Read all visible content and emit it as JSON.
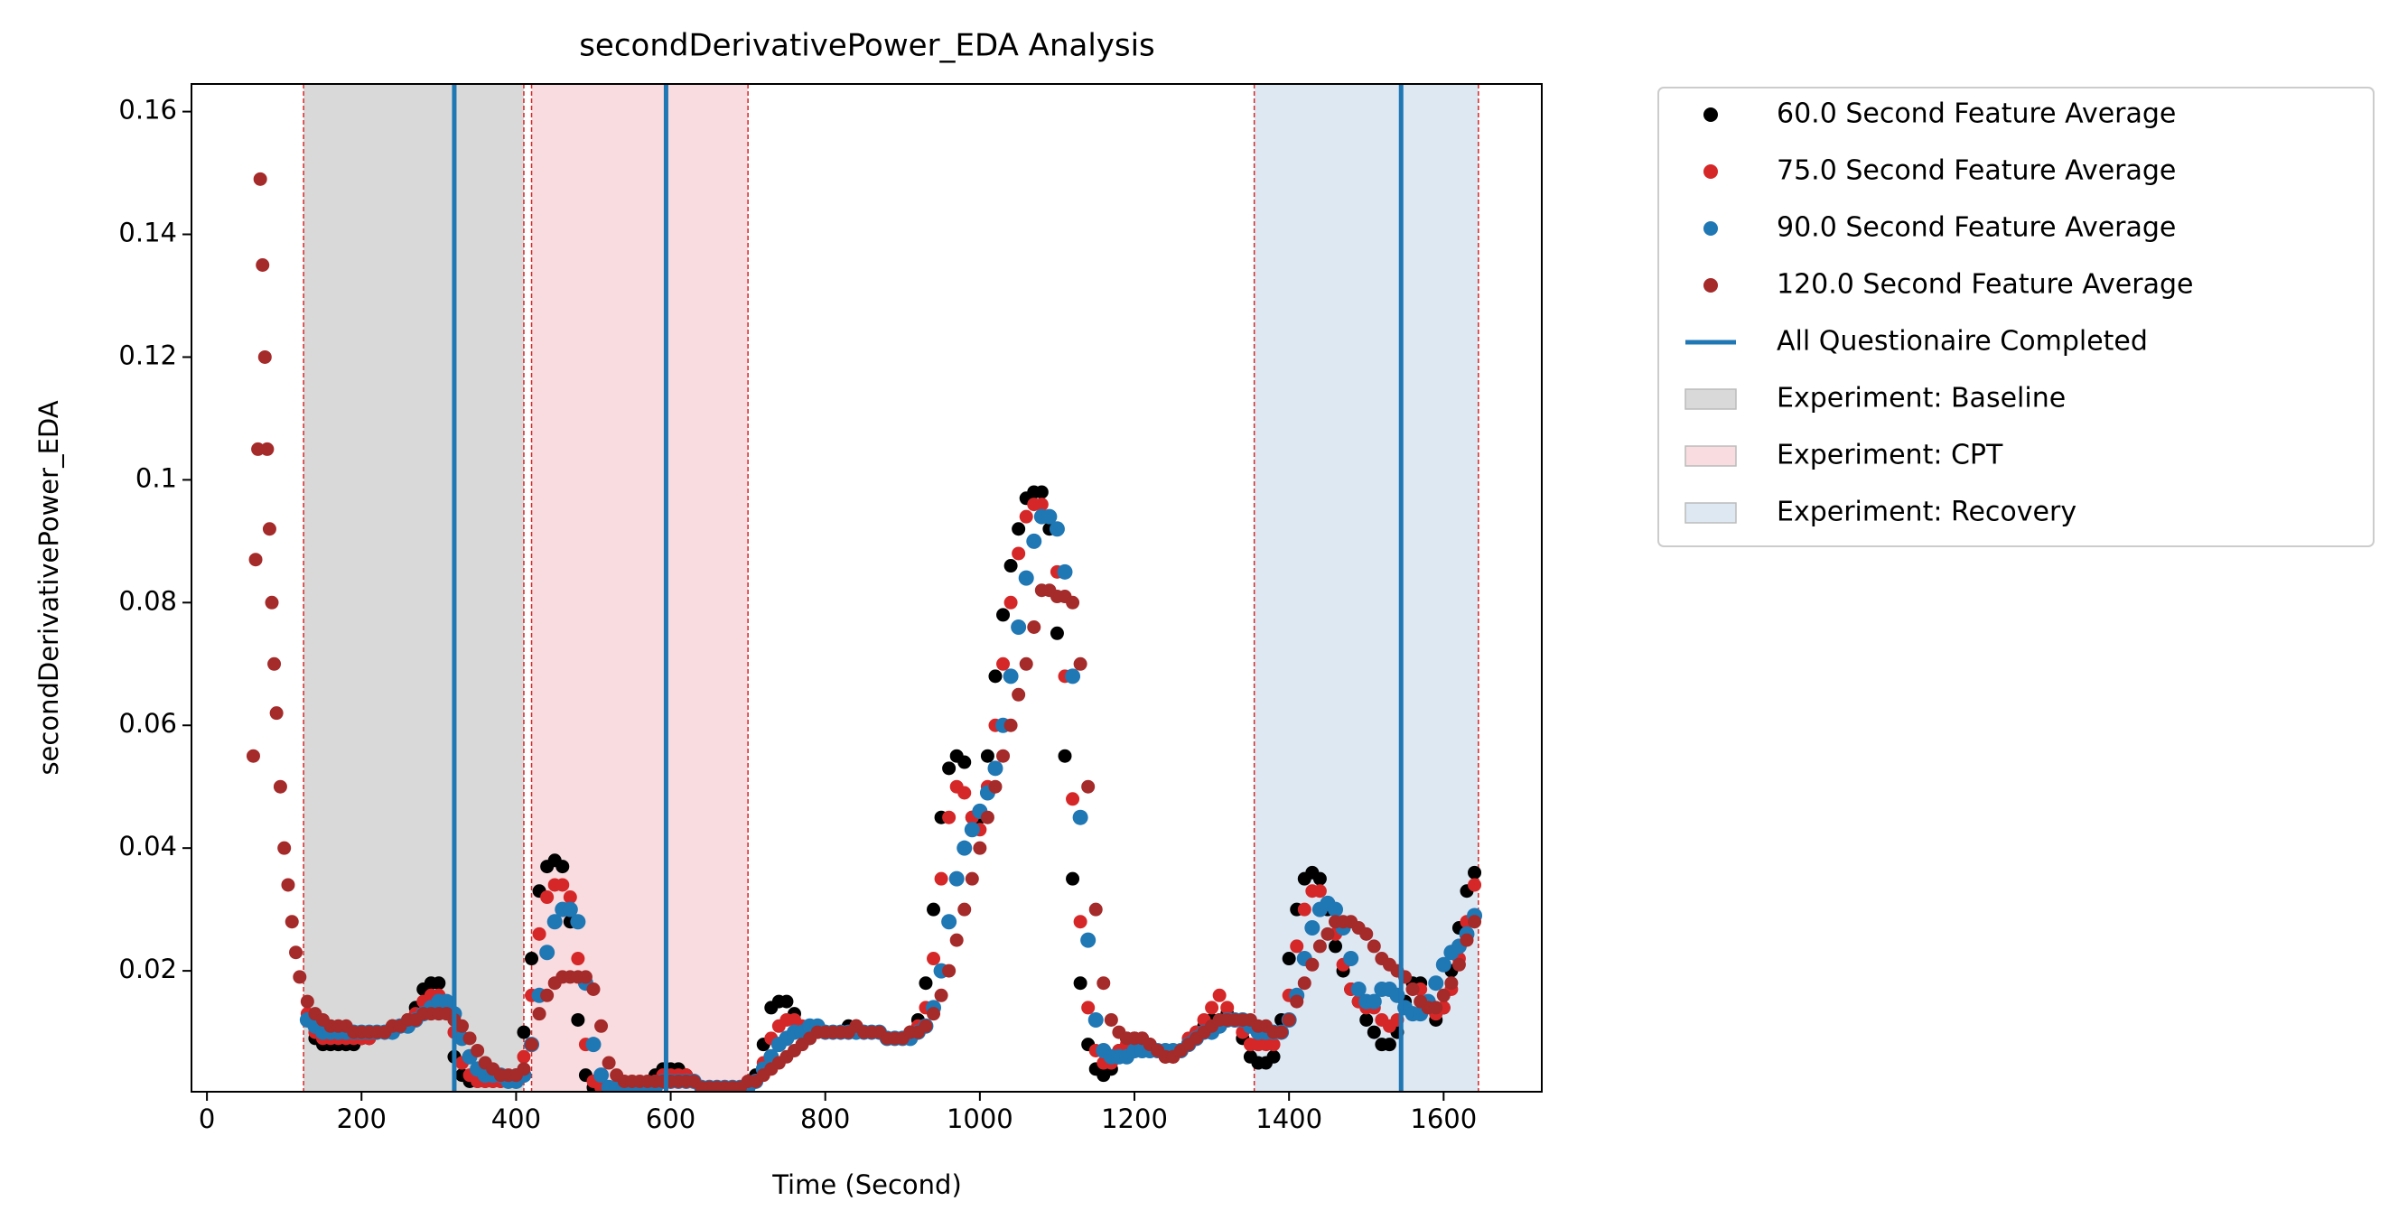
{
  "chart_data": {
    "type": "scatter",
    "title": "secondDerivativePower_EDA Analysis",
    "xlabel": "Time (Second)",
    "ylabel": "secondDerivativePower_EDA",
    "xlim": [
      -20,
      1727
    ],
    "ylim": [
      0.0003,
      0.1645
    ],
    "xticks": [
      0,
      200,
      400,
      600,
      800,
      1000,
      1200,
      1400,
      1600
    ],
    "yticks": [
      0.02,
      0.04,
      0.06,
      0.08,
      0.1,
      0.12,
      0.14,
      0.16
    ],
    "x": [
      60,
      63,
      66,
      69,
      72,
      75,
      78,
      81,
      84,
      87,
      90,
      95,
      100,
      105,
      110,
      115,
      120,
      130,
      140,
      150,
      160,
      170,
      180,
      190,
      200,
      210,
      220,
      230,
      240,
      250,
      260,
      270,
      280,
      290,
      300,
      310,
      320,
      330,
      340,
      350,
      360,
      370,
      380,
      390,
      400,
      410,
      420,
      430,
      440,
      450,
      460,
      470,
      480,
      490,
      500,
      510,
      520,
      530,
      540,
      550,
      560,
      570,
      580,
      590,
      600,
      610,
      620,
      630,
      640,
      650,
      660,
      670,
      680,
      690,
      700,
      710,
      720,
      730,
      740,
      750,
      760,
      770,
      780,
      790,
      800,
      810,
      820,
      830,
      840,
      850,
      860,
      870,
      880,
      890,
      900,
      910,
      920,
      930,
      940,
      950,
      960,
      970,
      980,
      990,
      1000,
      1010,
      1020,
      1030,
      1040,
      1050,
      1060,
      1070,
      1080,
      1090,
      1100,
      1110,
      1120,
      1130,
      1140,
      1150,
      1160,
      1170,
      1180,
      1190,
      1200,
      1210,
      1220,
      1230,
      1240,
      1250,
      1260,
      1270,
      1280,
      1290,
      1300,
      1310,
      1320,
      1330,
      1340,
      1350,
      1360,
      1370,
      1380,
      1390,
      1400,
      1410,
      1420,
      1430,
      1440,
      1450,
      1460,
      1470,
      1480,
      1490,
      1500,
      1510,
      1520,
      1530,
      1540,
      1550,
      1560,
      1570,
      1580,
      1590,
      1600,
      1610,
      1620,
      1630,
      1640
    ],
    "series": [
      {
        "name": "60.0 Second Feature Average",
        "color": "#000000",
        "values": [
          null,
          null,
          null,
          null,
          null,
          null,
          null,
          null,
          null,
          null,
          null,
          null,
          null,
          null,
          null,
          null,
          null,
          0.012,
          0.009,
          0.008,
          0.008,
          0.008,
          0.008,
          0.008,
          0.009,
          0.009,
          0.01,
          0.01,
          0.011,
          0.011,
          0.012,
          0.014,
          0.017,
          0.018,
          0.018,
          0.014,
          0.006,
          0.003,
          0.002,
          0.002,
          0.002,
          0.002,
          0.002,
          0.002,
          0.003,
          0.01,
          0.022,
          0.033,
          0.037,
          0.038,
          0.037,
          0.028,
          0.012,
          0.003,
          0.001,
          0.001,
          0.001,
          0.001,
          0.001,
          0.001,
          0.001,
          0.001,
          0.003,
          0.004,
          0.004,
          0.004,
          0.003,
          0.002,
          0.001,
          0.001,
          0.001,
          0.001,
          0.001,
          0.001,
          0.001,
          0.003,
          0.008,
          0.014,
          0.015,
          0.015,
          0.013,
          0.01,
          0.009,
          0.01,
          0.01,
          0.01,
          0.01,
          0.011,
          0.011,
          0.01,
          0.01,
          0.01,
          0.009,
          0.009,
          0.009,
          0.01,
          0.012,
          0.018,
          0.03,
          0.045,
          0.053,
          0.055,
          0.054,
          0.045,
          0.045,
          0.055,
          0.068,
          0.078,
          0.086,
          0.092,
          0.097,
          0.098,
          0.098,
          0.092,
          0.075,
          0.055,
          0.035,
          0.018,
          0.008,
          0.004,
          0.003,
          0.004,
          0.007,
          0.009,
          0.009,
          0.009,
          0.008,
          0.007,
          0.006,
          0.006,
          0.007,
          0.008,
          0.01,
          0.011,
          0.012,
          0.012,
          0.013,
          0.012,
          0.009,
          0.006,
          0.005,
          0.005,
          0.006,
          0.012,
          0.022,
          0.03,
          0.035,
          0.036,
          0.035,
          0.03,
          0.024,
          0.02,
          0.017,
          0.015,
          0.012,
          0.01,
          0.008,
          0.008,
          0.01,
          0.015,
          0.018,
          0.018,
          0.015,
          0.012,
          0.014,
          0.02,
          0.027,
          0.033,
          0.036
        ]
      },
      {
        "name": "75.0 Second Feature Average",
        "color": "#d62728",
        "values": [
          null,
          null,
          null,
          null,
          null,
          null,
          null,
          null,
          null,
          null,
          null,
          null,
          null,
          null,
          null,
          null,
          null,
          0.013,
          0.01,
          0.009,
          0.009,
          0.009,
          0.009,
          0.009,
          0.009,
          0.009,
          0.01,
          0.01,
          0.011,
          0.011,
          0.012,
          0.013,
          0.015,
          0.016,
          0.016,
          0.015,
          0.01,
          0.005,
          0.003,
          0.002,
          0.002,
          0.002,
          0.002,
          0.002,
          0.002,
          0.006,
          0.016,
          0.026,
          0.032,
          0.034,
          0.034,
          0.032,
          0.022,
          0.008,
          0.002,
          0.001,
          0.001,
          0.001,
          0.001,
          0.001,
          0.001,
          0.001,
          0.002,
          0.003,
          0.003,
          0.003,
          0.003,
          0.002,
          0.001,
          0.001,
          0.001,
          0.001,
          0.001,
          0.001,
          0.001,
          0.002,
          0.005,
          0.009,
          0.011,
          0.012,
          0.012,
          0.011,
          0.01,
          0.01,
          0.01,
          0.01,
          0.01,
          0.01,
          0.011,
          0.01,
          0.01,
          0.01,
          0.009,
          0.009,
          0.009,
          0.01,
          0.011,
          0.014,
          0.022,
          0.035,
          0.045,
          0.05,
          0.049,
          0.045,
          0.043,
          0.05,
          0.06,
          0.07,
          0.08,
          0.088,
          0.094,
          0.096,
          0.096,
          0.094,
          0.085,
          0.068,
          0.048,
          0.028,
          0.014,
          0.007,
          0.005,
          0.005,
          0.007,
          0.008,
          0.009,
          0.009,
          0.008,
          0.007,
          0.006,
          0.006,
          0.007,
          0.009,
          0.01,
          0.012,
          0.014,
          0.016,
          0.014,
          0.012,
          0.01,
          0.008,
          0.008,
          0.008,
          0.008,
          0.01,
          0.016,
          0.024,
          0.03,
          0.033,
          0.033,
          0.031,
          0.026,
          0.021,
          0.017,
          0.015,
          0.014,
          0.014,
          0.012,
          0.011,
          0.012,
          0.014,
          0.017,
          0.017,
          0.015,
          0.013,
          0.014,
          0.017,
          0.022,
          0.028,
          0.034
        ]
      },
      {
        "name": "90.0 Second Feature Average",
        "color": "#1f77b4",
        "values": [
          null,
          null,
          null,
          null,
          null,
          null,
          null,
          null,
          null,
          null,
          null,
          null,
          null,
          null,
          null,
          null,
          null,
          0.012,
          0.011,
          0.01,
          0.01,
          0.01,
          0.01,
          0.01,
          0.01,
          0.01,
          0.01,
          0.01,
          0.01,
          0.011,
          0.011,
          0.012,
          0.013,
          0.014,
          0.015,
          0.015,
          0.013,
          0.009,
          0.006,
          0.004,
          0.003,
          0.003,
          0.003,
          0.002,
          0.002,
          0.003,
          0.008,
          0.016,
          0.023,
          0.028,
          0.03,
          0.03,
          0.028,
          0.018,
          0.008,
          0.003,
          0.001,
          0.001,
          0.001,
          0.001,
          0.001,
          0.001,
          0.001,
          0.002,
          0.002,
          0.002,
          0.002,
          0.002,
          0.001,
          0.001,
          0.001,
          0.001,
          0.001,
          0.001,
          0.001,
          0.002,
          0.004,
          0.006,
          0.008,
          0.009,
          0.01,
          0.01,
          0.011,
          0.011,
          0.01,
          0.01,
          0.01,
          0.01,
          0.01,
          0.01,
          0.01,
          0.01,
          0.009,
          0.009,
          0.009,
          0.009,
          0.01,
          0.011,
          0.014,
          0.02,
          0.028,
          0.035,
          0.04,
          0.043,
          0.046,
          0.049,
          0.053,
          0.06,
          0.068,
          0.076,
          0.084,
          0.09,
          0.094,
          0.094,
          0.092,
          0.085,
          0.068,
          0.045,
          0.025,
          0.012,
          0.007,
          0.006,
          0.006,
          0.006,
          0.007,
          0.007,
          0.007,
          0.007,
          0.007,
          0.007,
          0.007,
          0.008,
          0.009,
          0.01,
          0.01,
          0.011,
          0.012,
          0.012,
          0.012,
          0.011,
          0.01,
          0.01,
          0.01,
          0.01,
          0.012,
          0.016,
          0.022,
          0.027,
          0.03,
          0.031,
          0.03,
          0.027,
          0.022,
          0.017,
          0.015,
          0.015,
          0.017,
          0.017,
          0.016,
          0.014,
          0.013,
          0.013,
          0.015,
          0.018,
          0.021,
          0.023,
          0.024,
          0.026,
          0.029
        ]
      },
      {
        "name": "120.0 Second Feature Average",
        "color": "#a52a2a",
        "values": [
          0.055,
          0.087,
          0.105,
          0.149,
          0.135,
          0.12,
          0.105,
          0.092,
          0.08,
          0.07,
          0.062,
          0.05,
          0.04,
          0.034,
          0.028,
          0.023,
          0.019,
          0.015,
          0.013,
          0.012,
          0.011,
          0.011,
          0.011,
          0.01,
          0.01,
          0.01,
          0.01,
          0.01,
          0.011,
          0.011,
          0.012,
          0.012,
          0.013,
          0.013,
          0.013,
          0.013,
          0.012,
          0.011,
          0.009,
          0.007,
          0.005,
          0.004,
          0.003,
          0.003,
          0.003,
          0.004,
          0.008,
          0.013,
          0.016,
          0.018,
          0.019,
          0.019,
          0.019,
          0.019,
          0.017,
          0.011,
          0.005,
          0.003,
          0.002,
          0.002,
          0.002,
          0.002,
          0.002,
          0.002,
          0.002,
          0.002,
          0.002,
          0.002,
          0.001,
          0.001,
          0.001,
          0.001,
          0.001,
          0.001,
          0.002,
          0.002,
          0.003,
          0.004,
          0.005,
          0.006,
          0.007,
          0.008,
          0.009,
          0.01,
          0.01,
          0.01,
          0.01,
          0.01,
          0.011,
          0.01,
          0.01,
          0.01,
          0.009,
          0.009,
          0.009,
          0.01,
          0.01,
          0.011,
          0.013,
          0.016,
          0.02,
          0.025,
          0.03,
          0.035,
          0.04,
          0.045,
          0.05,
          0.055,
          0.06,
          0.065,
          0.07,
          0.076,
          0.082,
          0.082,
          0.081,
          0.081,
          0.08,
          0.07,
          0.05,
          0.03,
          0.018,
          0.012,
          0.01,
          0.009,
          0.009,
          0.009,
          0.008,
          0.007,
          0.006,
          0.006,
          0.007,
          0.008,
          0.009,
          0.01,
          0.011,
          0.012,
          0.012,
          0.012,
          0.012,
          0.012,
          0.011,
          0.011,
          0.01,
          0.01,
          0.012,
          0.015,
          0.018,
          0.021,
          0.024,
          0.026,
          0.028,
          0.028,
          0.028,
          0.027,
          0.026,
          0.024,
          0.022,
          0.021,
          0.02,
          0.019,
          0.017,
          0.015,
          0.014,
          0.014,
          0.016,
          0.018,
          0.021,
          0.025,
          0.028
        ]
      }
    ],
    "vlines": {
      "name": "All Questionaire Completed",
      "color": "#1f77b4",
      "x": [
        320,
        594,
        1545
      ]
    },
    "spans": [
      {
        "name": "Experiment: Baseline",
        "color": "#d9d9d9",
        "edge_color": "#d62728",
        "range": [
          125,
          410
        ]
      },
      {
        "name": "Experiment: CPT",
        "color": "#f8dcdf",
        "edge_color": "#d62728",
        "range": [
          420,
          700
        ]
      },
      {
        "name": "Experiment: Recovery",
        "color": "#dde8f2",
        "edge_color": "#d62728",
        "range": [
          1355,
          1645
        ]
      }
    ]
  }
}
